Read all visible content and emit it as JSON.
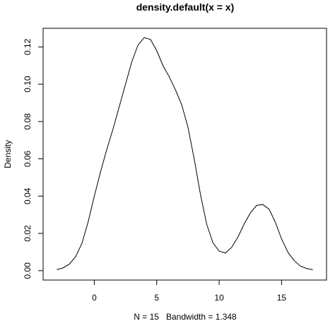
{
  "chart_data": {
    "type": "line",
    "title": "density.default(x = x)",
    "xlabel": "N = 15   Bandwidth = 1.348",
    "ylabel": "Density",
    "xlim": [
      -4.1,
      18.6
    ],
    "ylim": [
      -0.005,
      0.13
    ],
    "x_ticks": [
      0,
      5,
      10,
      15
    ],
    "y_ticks": [
      0.0,
      0.02,
      0.04,
      0.06,
      0.08,
      0.1,
      0.12
    ],
    "y_tick_labels": [
      "0.00",
      "0.02",
      "0.04",
      "0.06",
      "0.08",
      "0.10",
      "0.12"
    ],
    "grid": false,
    "series": [
      {
        "x": [
          -3.0,
          -2.5,
          -2.0,
          -1.5,
          -1.0,
          -0.5,
          0.0,
          0.5,
          1.0,
          1.5,
          2.0,
          2.5,
          3.0,
          3.5,
          4.0,
          4.5,
          5.0,
          5.5,
          6.0,
          6.5,
          7.0,
          7.5,
          8.0,
          8.5,
          9.0,
          9.5,
          10.0,
          10.5,
          11.0,
          11.5,
          12.0,
          12.5,
          13.0,
          13.5,
          14.0,
          14.5,
          15.0,
          15.5,
          16.0,
          16.5,
          17.0,
          17.5
        ],
        "y": [
          0.0006,
          0.0015,
          0.0035,
          0.0075,
          0.0145,
          0.026,
          0.04,
          0.053,
          0.065,
          0.076,
          0.088,
          0.1,
          0.112,
          0.121,
          0.125,
          0.124,
          0.118,
          0.11,
          0.104,
          0.097,
          0.089,
          0.077,
          0.06,
          0.041,
          0.025,
          0.015,
          0.0105,
          0.0095,
          0.0125,
          0.018,
          0.025,
          0.031,
          0.035,
          0.0355,
          0.033,
          0.026,
          0.017,
          0.01,
          0.0055,
          0.0025,
          0.0012,
          0.0005
        ]
      }
    ]
  }
}
